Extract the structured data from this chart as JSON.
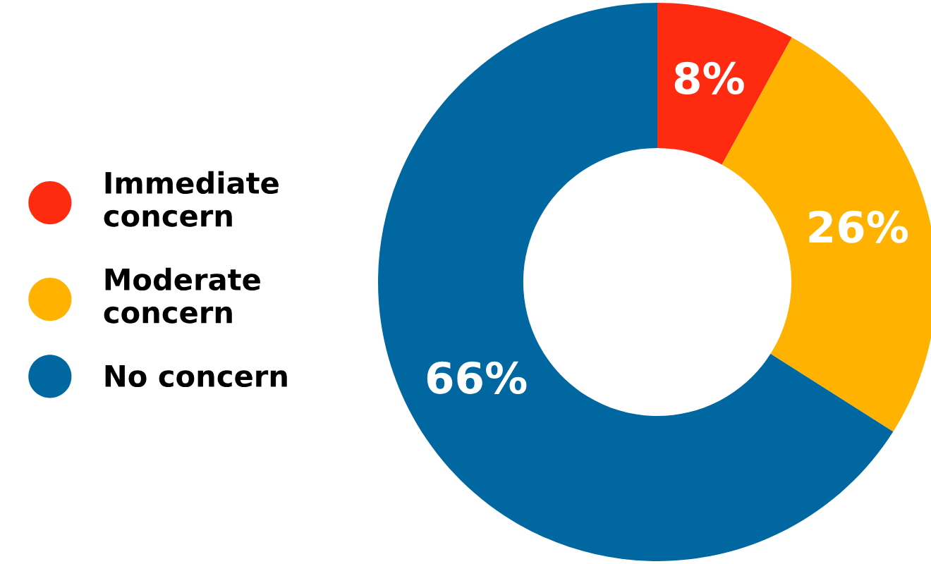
{
  "chart_data": {
    "type": "donut",
    "categories": [
      "Immediate\nconcern",
      "Moderate\nconcern",
      "No concern"
    ],
    "values": [
      8,
      26,
      66
    ],
    "colors": [
      "#fe2b10",
      "#ffb300",
      "#0067a0"
    ],
    "value_labels": [
      "8%",
      "26%",
      "66%"
    ],
    "legend": "left"
  }
}
